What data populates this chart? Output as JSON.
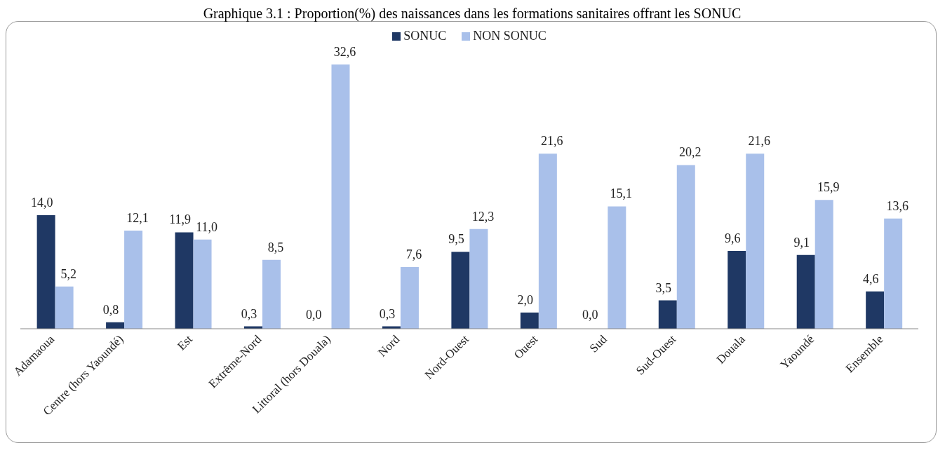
{
  "chart_data": {
    "type": "bar",
    "title": "Graphique 3.1 : Proportion(%) des naissances dans les formations sanitaires offrant les SONUC",
    "categories": [
      "Adamaoua",
      "Centre (hors Yaoundé)",
      "Est",
      "Extrême-Nord",
      "Littoral (hors Douala)",
      "Nord",
      "Nord-Ouest",
      "Ouest",
      "Sud",
      "Sud-Ouest",
      "Douala",
      "Yaoundé",
      "Ensemble"
    ],
    "series": [
      {
        "name": "SONUC",
        "color": "#1f3864",
        "values": [
          14.0,
          0.8,
          11.9,
          0.3,
          0.0,
          0.3,
          9.5,
          2.0,
          0.0,
          3.5,
          9.6,
          9.1,
          4.6
        ],
        "value_labels": [
          "14,0",
          "0,8",
          "11,9",
          "0,3",
          "0,0",
          "0,3",
          "9,5",
          "2,0",
          "0,0",
          "3,5",
          "9,6",
          "9,1",
          "4,6"
        ]
      },
      {
        "name": "NON SONUC",
        "color": "#a9c0ea",
        "values": [
          5.2,
          12.1,
          11.0,
          8.5,
          32.6,
          7.6,
          12.3,
          21.6,
          15.1,
          20.2,
          21.6,
          15.9,
          13.6
        ],
        "value_labels": [
          "5,2",
          "12,1",
          "11,0",
          "8,5",
          "32,6",
          "7,6",
          "12,3",
          "21,6",
          "15,1",
          "20,2",
          "21,6",
          "15,9",
          "13,6"
        ]
      }
    ],
    "data_labels": true,
    "legend": "top",
    "grid": false
  }
}
